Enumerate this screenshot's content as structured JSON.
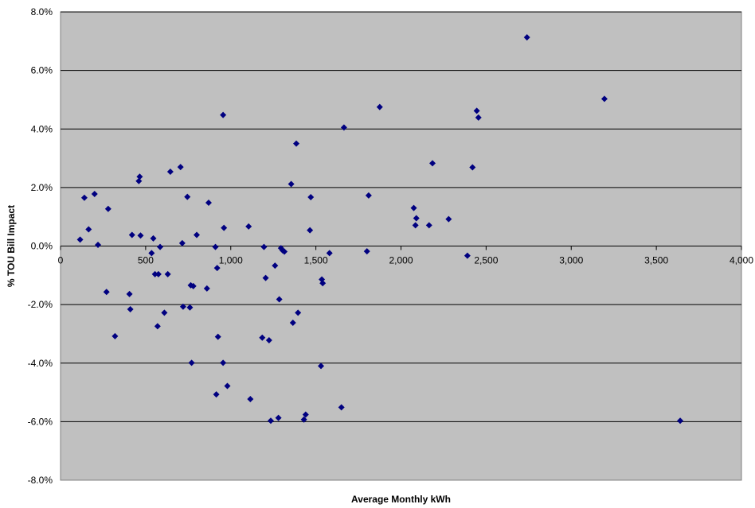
{
  "chart_data": {
    "type": "scatter",
    "title": "",
    "xlabel": "Average Monthly kWh",
    "ylabel": "% TOU Bill Impact",
    "xlim": [
      0,
      4000
    ],
    "ylim": [
      -8.0,
      8.0
    ],
    "x_ticks": [
      0,
      500,
      1000,
      1500,
      2000,
      2500,
      3000,
      3500,
      4000
    ],
    "x_tick_labels": [
      "0",
      "500",
      "1,000",
      "1,500",
      "2,000",
      "2,500",
      "3,000",
      "3,500",
      "4,000"
    ],
    "y_ticks": [
      -8,
      -6,
      -4,
      -2,
      0,
      2,
      4,
      6,
      8
    ],
    "y_tick_labels": [
      "-8.0%",
      "-6.0%",
      "-4.0%",
      "-2.0%",
      "0.0%",
      "2.0%",
      "4.0%",
      "6.0%",
      "8.0%"
    ],
    "grid": "horizontal",
    "legend": "none",
    "colors": {
      "plot_bg": "#c0c0c0",
      "marker": "#000080",
      "gridline": "#000000",
      "page_bg": "#ffffff"
    },
    "series": [
      {
        "points": [
          [
            115,
            0.22
          ],
          [
            140,
            1.65
          ],
          [
            165,
            0.57
          ],
          [
            200,
            1.78
          ],
          [
            220,
            0.04
          ],
          [
            270,
            -1.57
          ],
          [
            280,
            1.27
          ],
          [
            320,
            -3.08
          ],
          [
            405,
            -1.64
          ],
          [
            410,
            -2.16
          ],
          [
            420,
            0.38
          ],
          [
            460,
            2.22
          ],
          [
            465,
            2.37
          ],
          [
            470,
            0.36
          ],
          [
            535,
            -0.24
          ],
          [
            545,
            0.26
          ],
          [
            555,
            -0.96
          ],
          [
            570,
            -2.74
          ],
          [
            575,
            -0.96
          ],
          [
            585,
            -0.03
          ],
          [
            610,
            -2.28
          ],
          [
            630,
            -0.96
          ],
          [
            645,
            2.54
          ],
          [
            705,
            2.7
          ],
          [
            715,
            0.1
          ],
          [
            720,
            -2.07
          ],
          [
            745,
            1.68
          ],
          [
            760,
            -2.1
          ],
          [
            765,
            -1.34
          ],
          [
            770,
            -3.99
          ],
          [
            780,
            -1.37
          ],
          [
            800,
            0.38
          ],
          [
            860,
            -1.45
          ],
          [
            870,
            1.48
          ],
          [
            910,
            -0.03
          ],
          [
            915,
            -5.07
          ],
          [
            920,
            -0.75
          ],
          [
            925,
            -3.1
          ],
          [
            955,
            4.48
          ],
          [
            955,
            -3.99
          ],
          [
            960,
            0.62
          ],
          [
            980,
            -4.78
          ],
          [
            1105,
            0.67
          ],
          [
            1115,
            -5.23
          ],
          [
            1185,
            -3.13
          ],
          [
            1195,
            -0.03
          ],
          [
            1205,
            -1.09
          ],
          [
            1225,
            -3.22
          ],
          [
            1235,
            -5.97
          ],
          [
            1260,
            -0.67
          ],
          [
            1280,
            -5.87
          ],
          [
            1285,
            -1.82
          ],
          [
            1295,
            -0.07
          ],
          [
            1305,
            -0.15
          ],
          [
            1315,
            -0.19
          ],
          [
            1355,
            2.12
          ],
          [
            1365,
            -2.62
          ],
          [
            1385,
            3.5
          ],
          [
            1395,
            -2.28
          ],
          [
            1430,
            -5.93
          ],
          [
            1440,
            -5.76
          ],
          [
            1465,
            0.54
          ],
          [
            1470,
            1.67
          ],
          [
            1530,
            -4.1
          ],
          [
            1535,
            -1.14
          ],
          [
            1540,
            -1.27
          ],
          [
            1580,
            -0.24
          ],
          [
            1650,
            -5.51
          ],
          [
            1665,
            4.05
          ],
          [
            1800,
            -0.18
          ],
          [
            1810,
            1.73
          ],
          [
            1875,
            4.75
          ],
          [
            2075,
            1.3
          ],
          [
            2085,
            0.71
          ],
          [
            2090,
            0.95
          ],
          [
            2165,
            0.71
          ],
          [
            2185,
            2.83
          ],
          [
            2280,
            0.92
          ],
          [
            2390,
            -0.33
          ],
          [
            2420,
            2.69
          ],
          [
            2445,
            4.62
          ],
          [
            2455,
            4.39
          ],
          [
            2740,
            7.13
          ],
          [
            3195,
            5.03
          ],
          [
            3640,
            -5.97
          ]
        ]
      }
    ]
  }
}
